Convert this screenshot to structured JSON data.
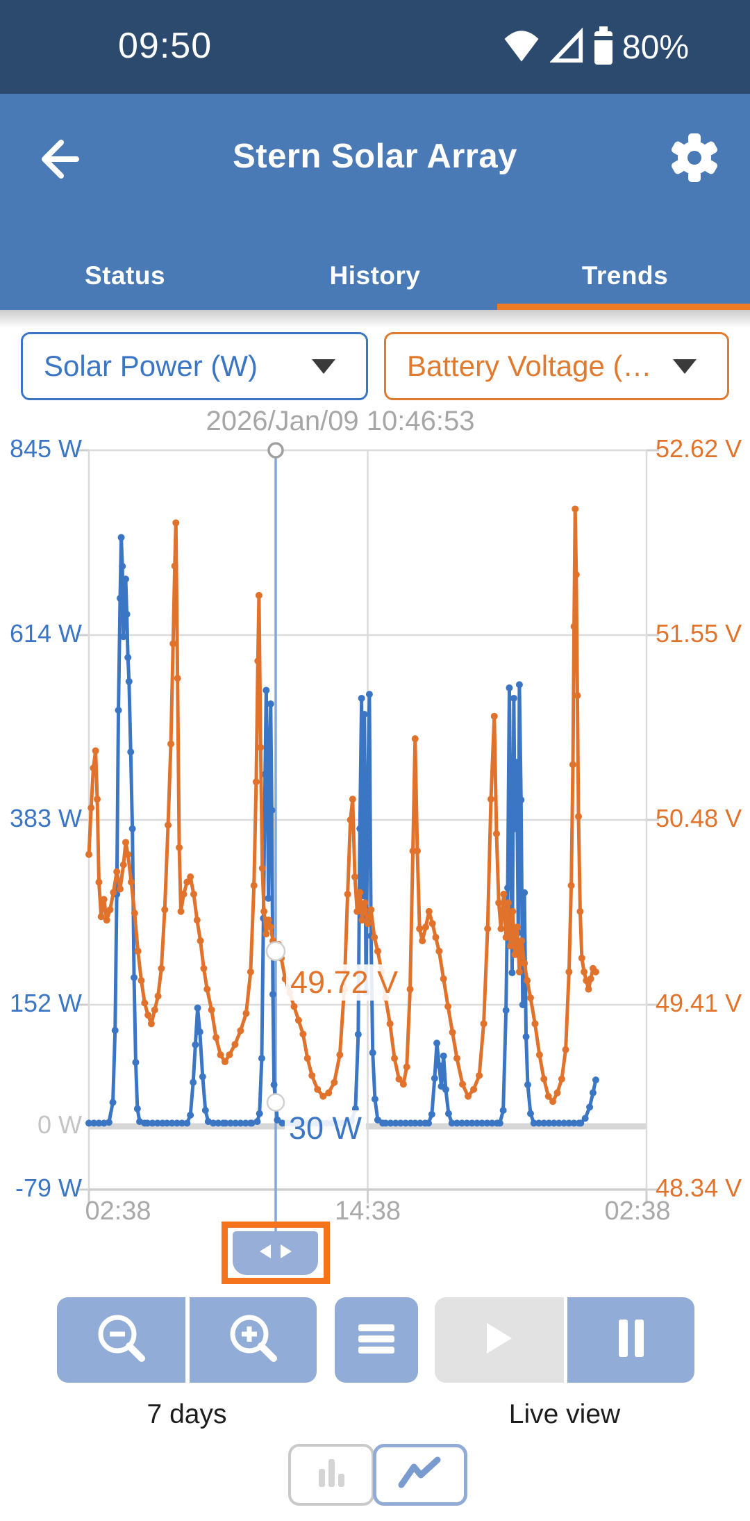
{
  "status_bar": {
    "time": "09:50",
    "battery": "80%"
  },
  "header": {
    "title": "Stern Solar Array"
  },
  "tabs": {
    "items": [
      {
        "label": "Status"
      },
      {
        "label": "History"
      },
      {
        "label": "Trends"
      }
    ],
    "active": "Trends"
  },
  "selectors": {
    "left": {
      "label": "Solar Power (W)"
    },
    "right": {
      "label": "Battery Voltage (…"
    }
  },
  "controls": {
    "zoom_group_label": "7 days",
    "live_group_label": "Live view"
  },
  "icons": {
    "back": "back-arrow",
    "settings": "gear",
    "wifi": "wifi",
    "cellular": "cellular-signal",
    "battery": "battery",
    "zoom_out": "magnifier-minus",
    "zoom_in": "magnifier-plus",
    "menu": "hamburger",
    "play": "play",
    "pause": "pause",
    "bar_chart": "bar-chart",
    "line_chart": "line-chart"
  },
  "colors": {
    "status_bar_bg": "#2c4a6e",
    "app_bar_bg": "#4a7ab5",
    "accent_orange": "#ef7b25",
    "highlight_orange": "#f4731c",
    "power_blue": "#3b76c4",
    "voltage_orange": "#e0722c",
    "button_blue": "#92acd8",
    "disabled_gray": "#e2e2e2",
    "grid_gray": "#dbdbdb",
    "cursor_line": "#85a8d6",
    "muted_text": "#a9a9a9"
  },
  "chart_data": {
    "type": "line",
    "title": "",
    "xlabel": "",
    "legend_position": "none",
    "grid": true,
    "x_axis": {
      "span_label": "7 days",
      "ticks": [
        {
          "label": "02:38",
          "pos": 0.0
        },
        {
          "label": "14:38",
          "pos": 0.5
        },
        {
          "label": "02:38",
          "pos": 1.0
        }
      ]
    },
    "left_axis": {
      "unit": "W",
      "min": -79,
      "max": 845,
      "color": "#3b76c4",
      "ticks": [
        {
          "label": "845 W",
          "value": 845
        },
        {
          "label": "614 W",
          "value": 614
        },
        {
          "label": "383 W",
          "value": 383
        },
        {
          "label": "152 W",
          "value": 152
        },
        {
          "label": "0 W",
          "value": 0,
          "muted": true
        },
        {
          "label": "-79 W",
          "value": -79
        }
      ]
    },
    "right_axis": {
      "unit": "V",
      "min": 48.34,
      "max": 52.62,
      "color": "#e2732a",
      "ticks": [
        {
          "label": "52.62 V",
          "value": 52.62
        },
        {
          "label": "51.55 V",
          "value": 51.55
        },
        {
          "label": "50.48 V",
          "value": 50.48
        },
        {
          "label": "49.41 V",
          "value": 49.41
        },
        {
          "label": "48.34 V",
          "value": 48.34
        }
      ]
    },
    "cursor": {
      "timestamp": "2026/Jan/09 10:46:53",
      "position": 0.335,
      "voltage_label": "49.72 V",
      "voltage_value": 49.72,
      "power_label": "30 W",
      "power_value": 30
    },
    "series": [
      {
        "name": "Solar Power",
        "unit": "W",
        "axis": "left",
        "color": "#3b76c4",
        "points": [
          [
            0.0,
            4
          ],
          [
            0.018,
            4
          ],
          [
            0.036,
            5
          ],
          [
            0.043,
            30
          ],
          [
            0.047,
            120
          ],
          [
            0.05,
            290
          ],
          [
            0.053,
            520
          ],
          [
            0.056,
            660
          ],
          [
            0.058,
            736
          ],
          [
            0.06,
            700
          ],
          [
            0.062,
            612
          ],
          [
            0.064,
            652
          ],
          [
            0.066,
            684
          ],
          [
            0.068,
            640
          ],
          [
            0.07,
            586
          ],
          [
            0.072,
            556
          ],
          [
            0.075,
            468
          ],
          [
            0.078,
            372
          ],
          [
            0.081,
            186
          ],
          [
            0.084,
            80
          ],
          [
            0.087,
            22
          ],
          [
            0.091,
            6
          ],
          [
            0.105,
            4
          ],
          [
            0.14,
            4
          ],
          [
            0.176,
            4
          ],
          [
            0.182,
            14
          ],
          [
            0.187,
            55
          ],
          [
            0.191,
            102
          ],
          [
            0.195,
            148
          ],
          [
            0.199,
            118
          ],
          [
            0.204,
            62
          ],
          [
            0.209,
            20
          ],
          [
            0.214,
            6
          ],
          [
            0.245,
            4
          ],
          [
            0.292,
            4
          ],
          [
            0.302,
            6
          ],
          [
            0.306,
            16
          ],
          [
            0.31,
            85
          ],
          [
            0.313,
            260
          ],
          [
            0.316,
            440
          ],
          [
            0.318,
            545
          ],
          [
            0.32,
            462
          ],
          [
            0.322,
            285
          ],
          [
            0.324,
            425
          ],
          [
            0.326,
            528
          ],
          [
            0.328,
            395
          ],
          [
            0.33,
            165
          ],
          [
            0.332,
            52
          ],
          [
            0.335,
            30
          ],
          [
            0.338,
            8
          ],
          [
            0.347,
            4
          ],
          [
            0.4,
            4
          ],
          [
            0.462,
            4
          ],
          [
            0.471,
            7
          ],
          [
            0.478,
            22
          ],
          [
            0.483,
            115
          ],
          [
            0.486,
            372
          ],
          [
            0.489,
            535
          ],
          [
            0.491,
            288
          ],
          [
            0.494,
            515
          ],
          [
            0.497,
            168
          ],
          [
            0.5,
            418
          ],
          [
            0.503,
            540
          ],
          [
            0.506,
            238
          ],
          [
            0.509,
            92
          ],
          [
            0.513,
            34
          ],
          [
            0.518,
            8
          ],
          [
            0.532,
            4
          ],
          [
            0.585,
            4
          ],
          [
            0.609,
            4
          ],
          [
            0.615,
            15
          ],
          [
            0.62,
            60
          ],
          [
            0.624,
            104
          ],
          [
            0.628,
            76
          ],
          [
            0.632,
            50
          ],
          [
            0.636,
            88
          ],
          [
            0.64,
            46
          ],
          [
            0.645,
            16
          ],
          [
            0.651,
            4
          ],
          [
            0.705,
            4
          ],
          [
            0.737,
            4
          ],
          [
            0.743,
            20
          ],
          [
            0.748,
            145
          ],
          [
            0.751,
            298
          ],
          [
            0.754,
            548
          ],
          [
            0.757,
            325
          ],
          [
            0.759,
            192
          ],
          [
            0.762,
            535
          ],
          [
            0.764,
            372
          ],
          [
            0.767,
            455
          ],
          [
            0.77,
            242
          ],
          [
            0.772,
            552
          ],
          [
            0.775,
            408
          ],
          [
            0.778,
            152
          ],
          [
            0.781,
            292
          ],
          [
            0.784,
            112
          ],
          [
            0.787,
            52
          ],
          [
            0.792,
            16
          ],
          [
            0.798,
            4
          ],
          [
            0.852,
            4
          ],
          [
            0.882,
            4
          ],
          [
            0.89,
            10
          ],
          [
            0.898,
            24
          ],
          [
            0.904,
            42
          ],
          [
            0.909,
            58
          ]
        ]
      },
      {
        "name": "Battery Voltage",
        "unit": "V",
        "axis": "right",
        "color": "#e0722c",
        "points": [
          [
            0.0,
            50.28
          ],
          [
            0.004,
            50.55
          ],
          [
            0.008,
            50.78
          ],
          [
            0.012,
            50.88
          ],
          [
            0.015,
            50.6
          ],
          [
            0.018,
            50.12
          ],
          [
            0.022,
            49.92
          ],
          [
            0.027,
            50.02
          ],
          [
            0.032,
            49.9
          ],
          [
            0.038,
            49.96
          ],
          [
            0.044,
            50.06
          ],
          [
            0.05,
            50.18
          ],
          [
            0.056,
            50.08
          ],
          [
            0.062,
            50.22
          ],
          [
            0.066,
            50.35
          ],
          [
            0.07,
            50.28
          ],
          [
            0.076,
            50.12
          ],
          [
            0.082,
            49.94
          ],
          [
            0.088,
            49.72
          ],
          [
            0.094,
            49.55
          ],
          [
            0.1,
            49.42
          ],
          [
            0.106,
            49.35
          ],
          [
            0.112,
            49.3
          ],
          [
            0.118,
            49.38
          ],
          [
            0.124,
            49.46
          ],
          [
            0.13,
            49.62
          ],
          [
            0.136,
            49.96
          ],
          [
            0.142,
            50.45
          ],
          [
            0.147,
            50.92
          ],
          [
            0.151,
            51.5
          ],
          [
            0.154,
            51.95
          ],
          [
            0.156,
            52.2
          ],
          [
            0.159,
            51.3
          ],
          [
            0.162,
            50.32
          ],
          [
            0.165,
            49.95
          ],
          [
            0.17,
            50.05
          ],
          [
            0.176,
            50.12
          ],
          [
            0.182,
            50.15
          ],
          [
            0.188,
            50.05
          ],
          [
            0.194,
            49.9
          ],
          [
            0.2,
            49.78
          ],
          [
            0.206,
            49.62
          ],
          [
            0.212,
            49.5
          ],
          [
            0.22,
            49.38
          ],
          [
            0.228,
            49.22
          ],
          [
            0.236,
            49.12
          ],
          [
            0.244,
            49.08
          ],
          [
            0.252,
            49.12
          ],
          [
            0.262,
            49.18
          ],
          [
            0.272,
            49.26
          ],
          [
            0.282,
            49.36
          ],
          [
            0.29,
            49.6
          ],
          [
            0.296,
            50.1
          ],
          [
            0.3,
            50.7
          ],
          [
            0.303,
            51.4
          ],
          [
            0.305,
            51.78
          ],
          [
            0.308,
            50.9
          ],
          [
            0.311,
            50.2
          ],
          [
            0.314,
            49.95
          ],
          [
            0.318,
            49.82
          ],
          [
            0.322,
            49.9
          ],
          [
            0.326,
            49.86
          ],
          [
            0.33,
            49.78
          ],
          [
            0.335,
            49.72
          ],
          [
            0.34,
            49.76
          ],
          [
            0.345,
            49.68
          ],
          [
            0.352,
            49.56
          ],
          [
            0.36,
            49.48
          ],
          [
            0.368,
            49.4
          ],
          [
            0.376,
            49.32
          ],
          [
            0.384,
            49.24
          ],
          [
            0.392,
            49.1
          ],
          [
            0.4,
            49.0
          ],
          [
            0.41,
            48.92
          ],
          [
            0.42,
            48.88
          ],
          [
            0.43,
            48.9
          ],
          [
            0.44,
            48.96
          ],
          [
            0.45,
            49.12
          ],
          [
            0.458,
            49.5
          ],
          [
            0.464,
            50.05
          ],
          [
            0.469,
            50.48
          ],
          [
            0.473,
            50.6
          ],
          [
            0.477,
            50.15
          ],
          [
            0.481,
            49.95
          ],
          [
            0.486,
            50.06
          ],
          [
            0.49,
            49.9
          ],
          [
            0.495,
            50.0
          ],
          [
            0.5,
            49.88
          ],
          [
            0.506,
            49.96
          ],
          [
            0.512,
            49.8
          ],
          [
            0.518,
            49.72
          ],
          [
            0.525,
            49.6
          ],
          [
            0.532,
            49.45
          ],
          [
            0.54,
            49.3
          ],
          [
            0.548,
            49.1
          ],
          [
            0.556,
            48.98
          ],
          [
            0.564,
            48.95
          ],
          [
            0.57,
            49.05
          ],
          [
            0.576,
            49.5
          ],
          [
            0.581,
            50.3
          ],
          [
            0.585,
            50.95
          ],
          [
            0.589,
            50.3
          ],
          [
            0.593,
            49.85
          ],
          [
            0.598,
            49.78
          ],
          [
            0.604,
            49.86
          ],
          [
            0.61,
            49.95
          ],
          [
            0.616,
            49.88
          ],
          [
            0.622,
            49.8
          ],
          [
            0.628,
            49.72
          ],
          [
            0.636,
            49.56
          ],
          [
            0.644,
            49.4
          ],
          [
            0.652,
            49.25
          ],
          [
            0.66,
            49.1
          ],
          [
            0.67,
            48.95
          ],
          [
            0.68,
            48.88
          ],
          [
            0.69,
            48.92
          ],
          [
            0.7,
            49.0
          ],
          [
            0.708,
            49.3
          ],
          [
            0.715,
            49.85
          ],
          [
            0.721,
            50.6
          ],
          [
            0.727,
            51.08
          ],
          [
            0.731,
            50.4
          ],
          [
            0.735,
            50.0
          ],
          [
            0.739,
            49.85
          ],
          [
            0.744,
            50.05
          ],
          [
            0.748,
            49.8
          ],
          [
            0.752,
            50.0
          ],
          [
            0.756,
            49.75
          ],
          [
            0.76,
            49.95
          ],
          [
            0.764,
            49.7
          ],
          [
            0.768,
            49.86
          ],
          [
            0.772,
            49.6
          ],
          [
            0.776,
            49.78
          ],
          [
            0.781,
            49.65
          ],
          [
            0.786,
            49.55
          ],
          [
            0.792,
            49.45
          ],
          [
            0.8,
            49.3
          ],
          [
            0.808,
            49.12
          ],
          [
            0.816,
            48.98
          ],
          [
            0.824,
            48.88
          ],
          [
            0.832,
            48.85
          ],
          [
            0.84,
            48.9
          ],
          [
            0.848,
            48.98
          ],
          [
            0.855,
            49.15
          ],
          [
            0.861,
            49.6
          ],
          [
            0.865,
            50.1
          ],
          [
            0.868,
            50.8
          ],
          [
            0.87,
            51.6
          ],
          [
            0.872,
            52.28
          ],
          [
            0.874,
            51.9
          ],
          [
            0.876,
            51.2
          ],
          [
            0.878,
            50.5
          ],
          [
            0.881,
            49.95
          ],
          [
            0.884,
            49.68
          ],
          [
            0.888,
            49.6
          ],
          [
            0.892,
            49.55
          ],
          [
            0.896,
            49.5
          ],
          [
            0.9,
            49.56
          ],
          [
            0.904,
            49.62
          ],
          [
            0.909,
            49.6
          ]
        ]
      }
    ]
  }
}
